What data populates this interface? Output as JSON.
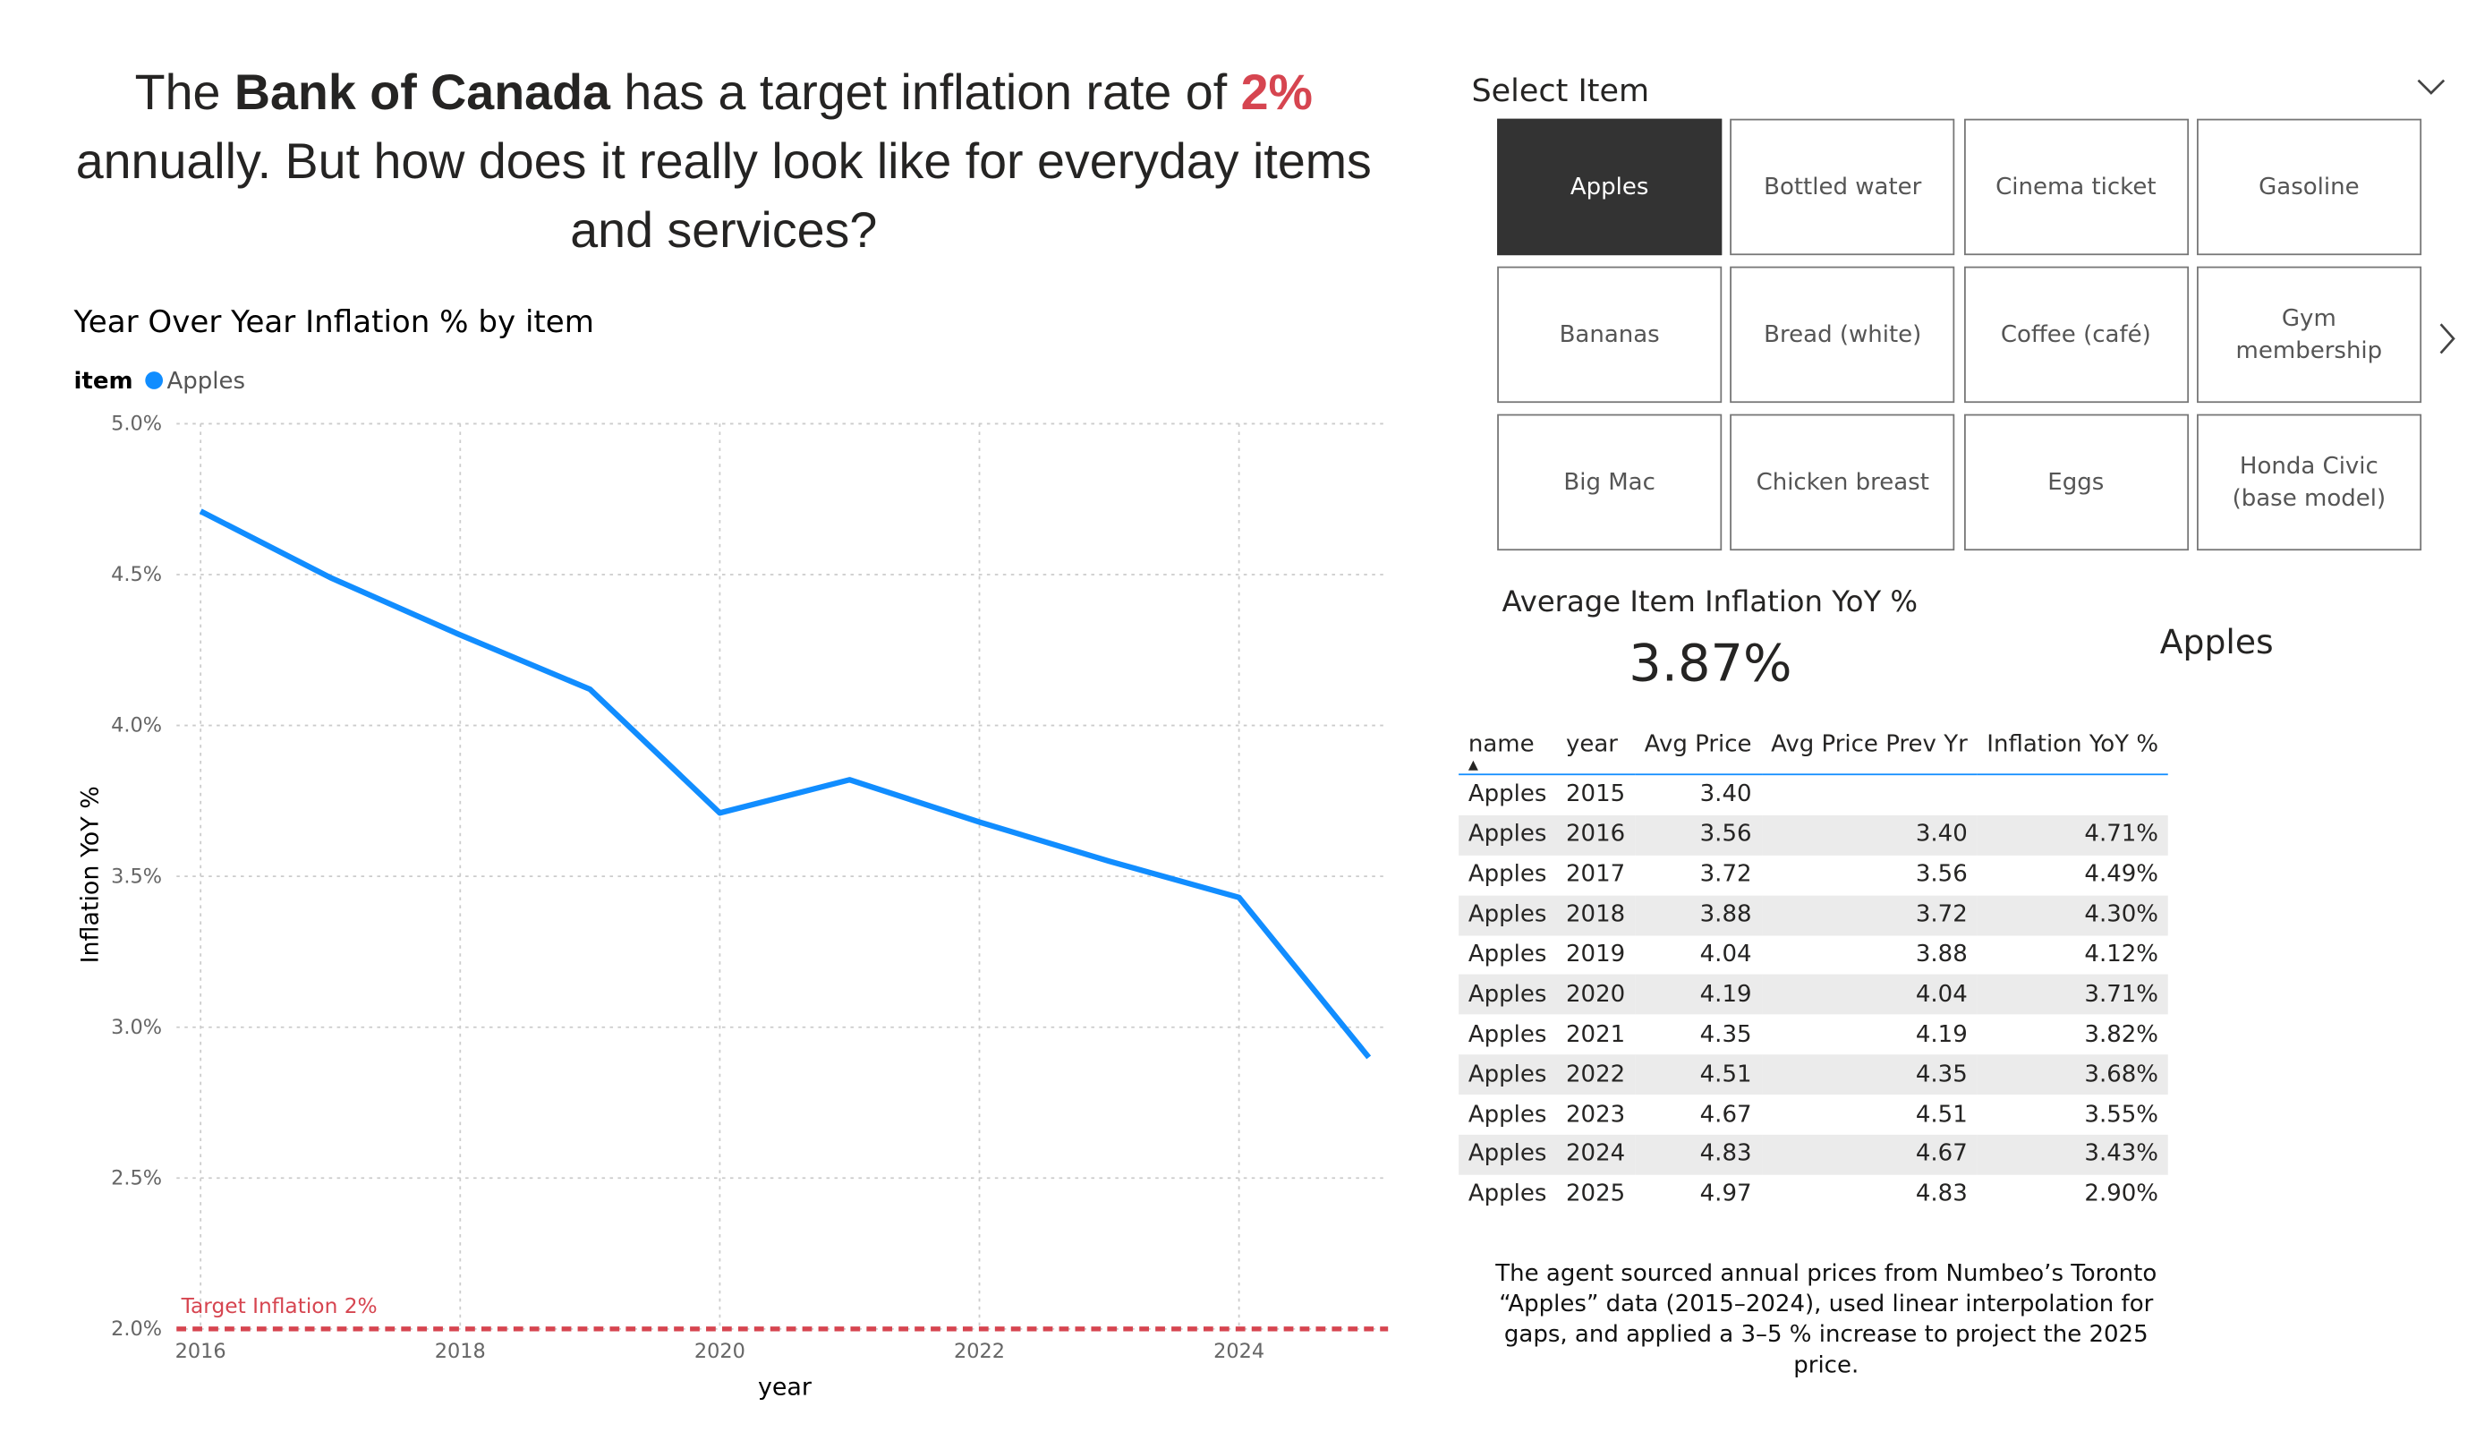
{
  "headline": {
    "parts": [
      {
        "text": "The ",
        "style": "normal"
      },
      {
        "text": "Bank of Canada",
        "style": "bold"
      },
      {
        "text": " has a target inflation rate of ",
        "style": "normal"
      },
      {
        "text": "2%",
        "style": "accent"
      },
      {
        "text": " annually. But how does it really look like for everyday items and services?",
        "style": "normal"
      }
    ]
  },
  "chart_data": {
    "type": "line",
    "title": "Year Over Year Inflation % by item",
    "legend_title": "item",
    "x_label": "year",
    "y_label": "Inflation YoY %",
    "x": [
      2016,
      2017,
      2018,
      2019,
      2020,
      2021,
      2022,
      2023,
      2024,
      2025
    ],
    "series": [
      {
        "name": "Apples",
        "color": "#118dff",
        "values": [
          4.71,
          4.49,
          4.3,
          4.12,
          3.71,
          3.82,
          3.68,
          3.55,
          3.43,
          2.9
        ]
      }
    ],
    "xlim": [
      2016,
      2025
    ],
    "xticks": [
      2016,
      2018,
      2020,
      2022,
      2024
    ],
    "ylim": [
      2.0,
      5.0
    ],
    "yticks": [
      {
        "value": 2.0,
        "label": "2.0%"
      },
      {
        "value": 2.5,
        "label": "2.5%"
      },
      {
        "value": 3.0,
        "label": "3.0%"
      },
      {
        "value": 3.5,
        "label": "3.5%"
      },
      {
        "value": 4.0,
        "label": "4.0%"
      },
      {
        "value": 4.5,
        "label": "4.5%"
      },
      {
        "value": 5.0,
        "label": "5.0%"
      }
    ],
    "grid": true,
    "reference_line": {
      "value": 2,
      "label": "Target Inflation 2%",
      "color": "#d64550"
    }
  },
  "slicer": {
    "title": "Select Item",
    "selected": 0,
    "items": [
      "Apples",
      "Bottled water",
      "Cinema ticket",
      "Gasoline",
      "Bananas",
      "Bread (white)",
      "Coffee (café)",
      "Gym membership",
      "Big Mac",
      "Chicken breast",
      "Eggs",
      "Honda Civic (base model)"
    ]
  },
  "card": {
    "label": "Average Item Inflation YoY %",
    "value": "3.87%",
    "item": "Apples"
  },
  "table": {
    "columns": [
      "name",
      "year",
      "Avg Price",
      "Avg Price Prev Yr",
      "Inflation YoY %"
    ],
    "rows": [
      [
        "Apples",
        "2015",
        "3.40",
        null,
        null
      ],
      [
        "Apples",
        "2016",
        "3.56",
        "3.40",
        "4.71%"
      ],
      [
        "Apples",
        "2017",
        "3.72",
        "3.56",
        "4.49%"
      ],
      [
        "Apples",
        "2018",
        "3.88",
        "3.72",
        "4.30%"
      ],
      [
        "Apples",
        "2019",
        "4.04",
        "3.88",
        "4.12%"
      ],
      [
        "Apples",
        "2020",
        "4.19",
        "4.04",
        "3.71%"
      ],
      [
        "Apples",
        "2021",
        "4.35",
        "4.19",
        "3.82%"
      ],
      [
        "Apples",
        "2022",
        "4.51",
        "4.35",
        "3.68%"
      ],
      [
        "Apples",
        "2023",
        "4.67",
        "4.51",
        "3.55%"
      ],
      [
        "Apples",
        "2024",
        "4.83",
        "4.67",
        "3.43%"
      ],
      [
        "Apples",
        "2025",
        "4.97",
        "4.83",
        "2.90%"
      ]
    ]
  },
  "note": "The agent sourced annual prices from Numbeo’s Toronto “Apples” data (2015–2024), used linear interpolation for gaps, and applied a 3–5 % increase to project the 2025 price."
}
